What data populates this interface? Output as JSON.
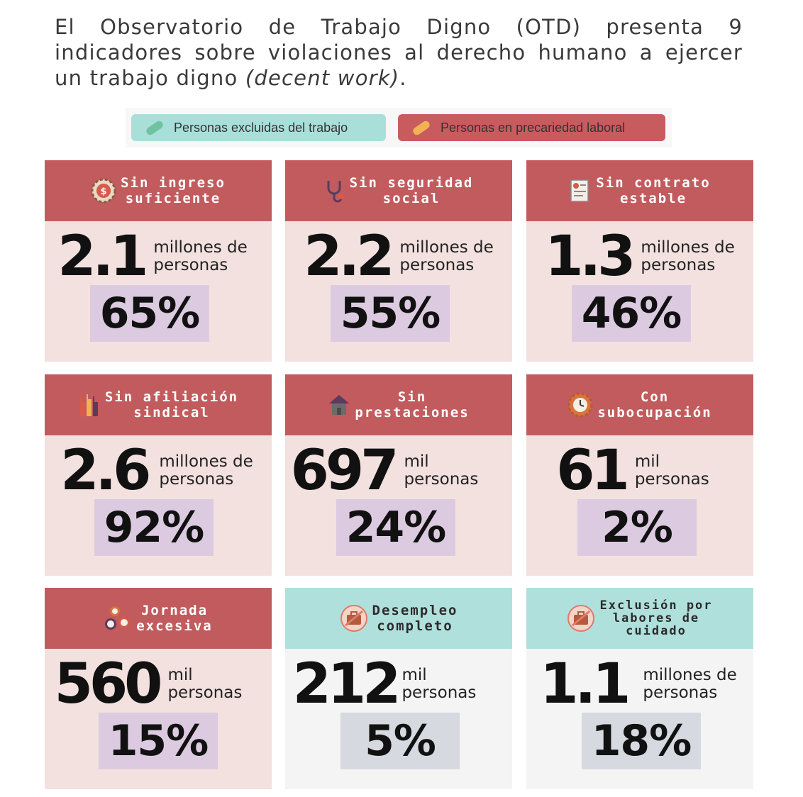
{
  "intro": {
    "text_before": "El Observatorio de Trabajo Digno (OTD) presenta 9 indicadores sobre violaciones al derecho humano a ejercer un trabajo digno ",
    "text_em": "(decent work)",
    "text_after": "."
  },
  "legend": {
    "excluded_label": "Personas excluidas del trabajo",
    "precarious_label": "Personas en precariedad laboral"
  },
  "colors": {
    "precarious_header": "#c25b5d",
    "excluded_header": "#b0e0dc",
    "precarious_body": "#f2e1df",
    "excluded_body": "#f4f4f4",
    "pct_box_precarious": "#dccbe0",
    "pct_box_excluded": "#d6d9df"
  },
  "cards": [
    {
      "title": "Sin ingreso\nsuficiente",
      "icon": "money-gear-icon",
      "value": "2.1",
      "unit": "millones de\npersonas",
      "percent": "65%",
      "category": "precarious"
    },
    {
      "title": "Sin seguridad\nsocial",
      "icon": "stethoscope-icon",
      "value": "2.2",
      "unit": "millones de\npersonas",
      "percent": "55%",
      "category": "precarious"
    },
    {
      "title": "Sin contrato\nestable",
      "icon": "contract-icon",
      "value": "1.3",
      "unit": "millones de\npersonas",
      "percent": "46%",
      "category": "precarious"
    },
    {
      "title": "Sin afiliación\nsindical",
      "icon": "raised-hands-icon",
      "value": "2.6",
      "unit": "millones de\npersonas",
      "percent": "92%",
      "category": "precarious"
    },
    {
      "title": "Sin\nprestaciones",
      "icon": "house-icon",
      "value": "697",
      "unit": "mil\npersonas",
      "percent": "24%",
      "category": "precarious"
    },
    {
      "title": "Con\nsubocupación",
      "icon": "clock-gear-icon",
      "value": "61",
      "unit": "mil\npersonas",
      "percent": "2%",
      "category": "precarious"
    },
    {
      "title": "Jornada\nexcesiva",
      "icon": "clocks-icon",
      "value": "560",
      "unit": "mil\npersonas",
      "percent": "15%",
      "category": "precarious"
    },
    {
      "title": "Desempleo\ncompleto",
      "icon": "no-briefcase-icon",
      "value": "212",
      "unit": "mil\npersonas",
      "percent": "5%",
      "category": "excluded"
    },
    {
      "title": "Exclusión por\nlabores de\ncuidado",
      "icon": "no-briefcase-icon",
      "value": "1.1",
      "unit": "millones de\npersonas",
      "percent": "18%",
      "category": "excluded"
    }
  ]
}
